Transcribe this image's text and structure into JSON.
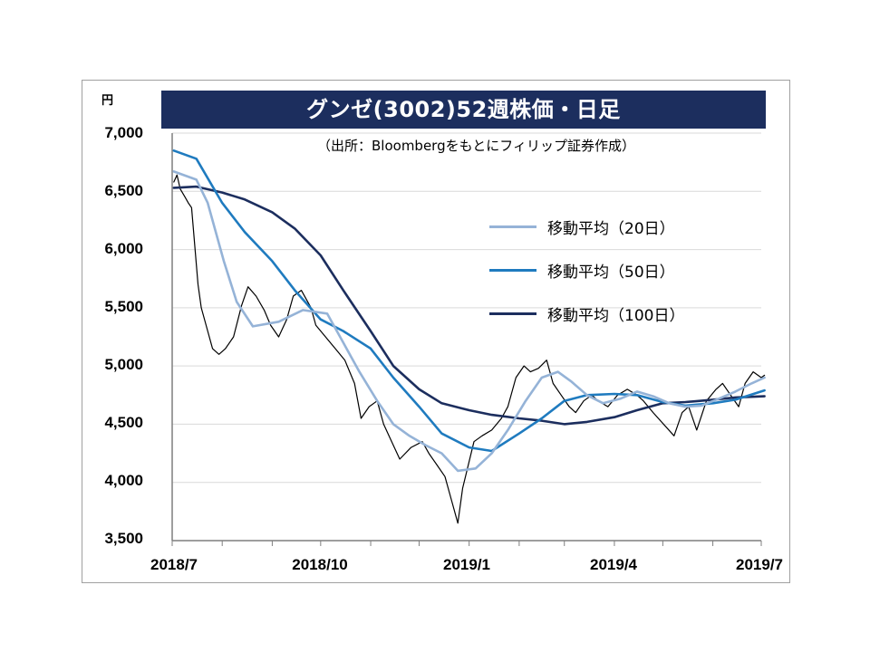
{
  "chart_data": {
    "type": "line",
    "title": "グンゼ(3002)52週株価・日足",
    "source_note": "（出所：Bloombergをもとにフィリップ証券作成）",
    "unit_label": "円",
    "ylim": [
      3500,
      7000
    ],
    "y_ticks": [
      "7,000",
      "6,500",
      "6,000",
      "5,500",
      "5,000",
      "4,500",
      "4,000",
      "3,500"
    ],
    "y_tick_values": [
      7000,
      6500,
      6000,
      5500,
      5000,
      4500,
      4000,
      3500
    ],
    "x_ticks": [
      "2018/7",
      "2018/10",
      "2019/1",
      "2019/4",
      "2019/7"
    ],
    "x_months": [
      "2018-07",
      "2018-08",
      "2018-09",
      "2018-10",
      "2018-11",
      "2018-12",
      "2019-01",
      "2019-02",
      "2019-03",
      "2019-04",
      "2019-05",
      "2019-06",
      "2019-07"
    ],
    "grid": "horizontal",
    "legend_position": "upper-right",
    "series": [
      {
        "name": "移動平均（20日）",
        "color": "#95b3d7",
        "points": [
          [
            "2018-07-02",
            6670
          ],
          [
            "2018-07-16",
            6600
          ],
          [
            "2018-07-23",
            6400
          ],
          [
            "2018-08-02",
            5900
          ],
          [
            "2018-08-10",
            5550
          ],
          [
            "2018-08-20",
            5340
          ],
          [
            "2018-09-05",
            5380
          ],
          [
            "2018-09-20",
            5480
          ],
          [
            "2018-10-05",
            5450
          ],
          [
            "2018-10-15",
            5200
          ],
          [
            "2018-10-25",
            4950
          ],
          [
            "2018-11-05",
            4700
          ],
          [
            "2018-11-15",
            4500
          ],
          [
            "2018-11-25",
            4400
          ],
          [
            "2018-12-05",
            4320
          ],
          [
            "2018-12-15",
            4250
          ],
          [
            "2018-12-25",
            4100
          ],
          [
            "2019-01-05",
            4120
          ],
          [
            "2019-01-15",
            4250
          ],
          [
            "2019-01-25",
            4450
          ],
          [
            "2019-02-05",
            4700
          ],
          [
            "2019-02-15",
            4900
          ],
          [
            "2019-02-25",
            4950
          ],
          [
            "2019-03-05",
            4870
          ],
          [
            "2019-03-15",
            4750
          ],
          [
            "2019-03-25",
            4680
          ],
          [
            "2019-04-05",
            4720
          ],
          [
            "2019-04-15",
            4780
          ],
          [
            "2019-04-25",
            4740
          ],
          [
            "2019-05-05",
            4680
          ],
          [
            "2019-05-15",
            4650
          ],
          [
            "2019-05-25",
            4660
          ],
          [
            "2019-06-05",
            4720
          ],
          [
            "2019-06-15",
            4780
          ],
          [
            "2019-06-25",
            4850
          ],
          [
            "2019-07-03",
            4900
          ]
        ]
      },
      {
        "name": "移動平均（50日）",
        "color": "#1f7bbf",
        "points": [
          [
            "2018-07-02",
            6850
          ],
          [
            "2018-07-16",
            6780
          ],
          [
            "2018-08-01",
            6400
          ],
          [
            "2018-08-15",
            6150
          ],
          [
            "2018-09-01",
            5900
          ],
          [
            "2018-09-15",
            5650
          ],
          [
            "2018-10-01",
            5400
          ],
          [
            "2018-10-15",
            5300
          ],
          [
            "2018-11-01",
            5150
          ],
          [
            "2018-11-15",
            4900
          ],
          [
            "2018-12-01",
            4650
          ],
          [
            "2018-12-15",
            4420
          ],
          [
            "2019-01-01",
            4300
          ],
          [
            "2019-01-15",
            4270
          ],
          [
            "2019-02-01",
            4420
          ],
          [
            "2019-02-15",
            4550
          ],
          [
            "2019-03-01",
            4700
          ],
          [
            "2019-03-15",
            4750
          ],
          [
            "2019-04-01",
            4760
          ],
          [
            "2019-04-15",
            4750
          ],
          [
            "2019-05-01",
            4690
          ],
          [
            "2019-05-15",
            4660
          ],
          [
            "2019-06-01",
            4680
          ],
          [
            "2019-06-15",
            4710
          ],
          [
            "2019-07-03",
            4790
          ]
        ]
      },
      {
        "name": "移動平均（100日）",
        "color": "#1c2e5e",
        "points": [
          [
            "2018-07-02",
            6530
          ],
          [
            "2018-07-16",
            6540
          ],
          [
            "2018-08-01",
            6490
          ],
          [
            "2018-08-15",
            6430
          ],
          [
            "2018-09-01",
            6320
          ],
          [
            "2018-09-15",
            6180
          ],
          [
            "2018-10-01",
            5950
          ],
          [
            "2018-10-15",
            5650
          ],
          [
            "2018-11-01",
            5300
          ],
          [
            "2018-11-15",
            5000
          ],
          [
            "2018-12-01",
            4800
          ],
          [
            "2018-12-15",
            4680
          ],
          [
            "2019-01-01",
            4620
          ],
          [
            "2019-01-15",
            4580
          ],
          [
            "2019-02-01",
            4550
          ],
          [
            "2019-02-15",
            4530
          ],
          [
            "2019-03-01",
            4500
          ],
          [
            "2019-03-15",
            4520
          ],
          [
            "2019-04-01",
            4560
          ],
          [
            "2019-04-15",
            4620
          ],
          [
            "2019-05-01",
            4680
          ],
          [
            "2019-05-15",
            4690
          ],
          [
            "2019-06-01",
            4710
          ],
          [
            "2019-06-15",
            4730
          ],
          [
            "2019-07-03",
            4740
          ]
        ]
      },
      {
        "name": "",
        "color": "#000000",
        "role": "daily-price",
        "points": [
          [
            "2018-07-02",
            6580
          ],
          [
            "2018-07-04",
            6640
          ],
          [
            "2018-07-06",
            6520
          ],
          [
            "2018-07-09",
            6450
          ],
          [
            "2018-07-11",
            6400
          ],
          [
            "2018-07-13",
            6360
          ],
          [
            "2018-07-17",
            5700
          ],
          [
            "2018-07-19",
            5500
          ],
          [
            "2018-07-23",
            5300
          ],
          [
            "2018-07-26",
            5150
          ],
          [
            "2018-07-30",
            5100
          ],
          [
            "2018-08-03",
            5150
          ],
          [
            "2018-08-08",
            5250
          ],
          [
            "2018-08-13",
            5520
          ],
          [
            "2018-08-17",
            5680
          ],
          [
            "2018-08-22",
            5600
          ],
          [
            "2018-08-27",
            5480
          ],
          [
            "2018-08-31",
            5350
          ],
          [
            "2018-09-05",
            5250
          ],
          [
            "2018-09-10",
            5400
          ],
          [
            "2018-09-14",
            5600
          ],
          [
            "2018-09-19",
            5650
          ],
          [
            "2018-09-25",
            5500
          ],
          [
            "2018-09-28",
            5350
          ],
          [
            "2018-10-04",
            5250
          ],
          [
            "2018-10-10",
            5150
          ],
          [
            "2018-10-16",
            5050
          ],
          [
            "2018-10-22",
            4850
          ],
          [
            "2018-10-26",
            4550
          ],
          [
            "2018-10-31",
            4650
          ],
          [
            "2018-11-05",
            4700
          ],
          [
            "2018-11-09",
            4500
          ],
          [
            "2018-11-14",
            4350
          ],
          [
            "2018-11-19",
            4200
          ],
          [
            "2018-11-26",
            4300
          ],
          [
            "2018-12-03",
            4350
          ],
          [
            "2018-12-07",
            4250
          ],
          [
            "2018-12-12",
            4150
          ],
          [
            "2018-12-17",
            4050
          ],
          [
            "2018-12-21",
            3850
          ],
          [
            "2018-12-25",
            3650
          ],
          [
            "2018-12-28",
            3950
          ],
          [
            "2019-01-04",
            4350
          ],
          [
            "2019-01-09",
            4400
          ],
          [
            "2019-01-15",
            4450
          ],
          [
            "2019-01-21",
            4550
          ],
          [
            "2019-01-25",
            4650
          ],
          [
            "2019-01-30",
            4900
          ],
          [
            "2019-02-04",
            5000
          ],
          [
            "2019-02-08",
            4950
          ],
          [
            "2019-02-13",
            4980
          ],
          [
            "2019-02-18",
            5050
          ],
          [
            "2019-02-22",
            4850
          ],
          [
            "2019-02-27",
            4750
          ],
          [
            "2019-03-04",
            4650
          ],
          [
            "2019-03-08",
            4600
          ],
          [
            "2019-03-13",
            4700
          ],
          [
            "2019-03-18",
            4750
          ],
          [
            "2019-03-22",
            4700
          ],
          [
            "2019-03-28",
            4650
          ],
          [
            "2019-04-03",
            4750
          ],
          [
            "2019-04-09",
            4800
          ],
          [
            "2019-04-15",
            4750
          ],
          [
            "2019-04-19",
            4700
          ],
          [
            "2019-04-25",
            4600
          ],
          [
            "2019-05-08",
            4400
          ],
          [
            "2019-05-13",
            4600
          ],
          [
            "2019-05-17",
            4650
          ],
          [
            "2019-05-22",
            4450
          ],
          [
            "2019-05-28",
            4700
          ],
          [
            "2019-06-03",
            4800
          ],
          [
            "2019-06-07",
            4850
          ],
          [
            "2019-06-12",
            4750
          ],
          [
            "2019-06-17",
            4650
          ],
          [
            "2019-06-21",
            4850
          ],
          [
            "2019-06-26",
            4950
          ],
          [
            "2019-07-01",
            4900
          ],
          [
            "2019-07-03",
            4920
          ]
        ]
      }
    ]
  }
}
